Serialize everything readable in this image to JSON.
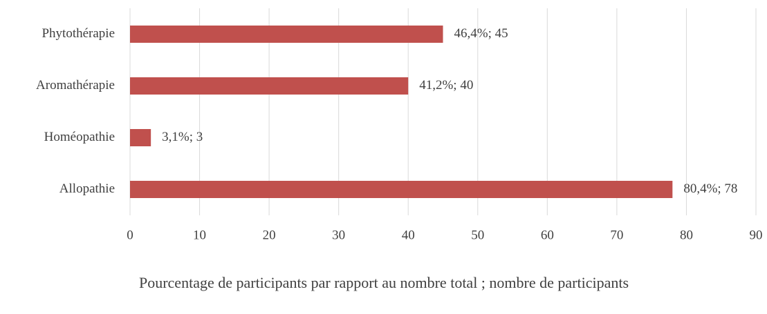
{
  "chart_data": {
    "type": "bar",
    "orientation": "horizontal",
    "x_axis_label": "Pourcentage de participants par rapport au nombre total ; nombre de participants",
    "categories": [
      "Phytothérapie",
      "Aromathérapie",
      "Homéopathie",
      "Allopathie"
    ],
    "values": [
      45,
      40,
      3,
      78
    ],
    "value_labels": [
      "46,4%; 45",
      "41,2%; 40",
      "3,1%; 3",
      "80,4%; 78"
    ],
    "color": "#c0504d",
    "xlim": [
      0,
      90
    ],
    "xticks": [
      0,
      10,
      20,
      30,
      40,
      50,
      60,
      70,
      80,
      90
    ],
    "grid": true
  }
}
